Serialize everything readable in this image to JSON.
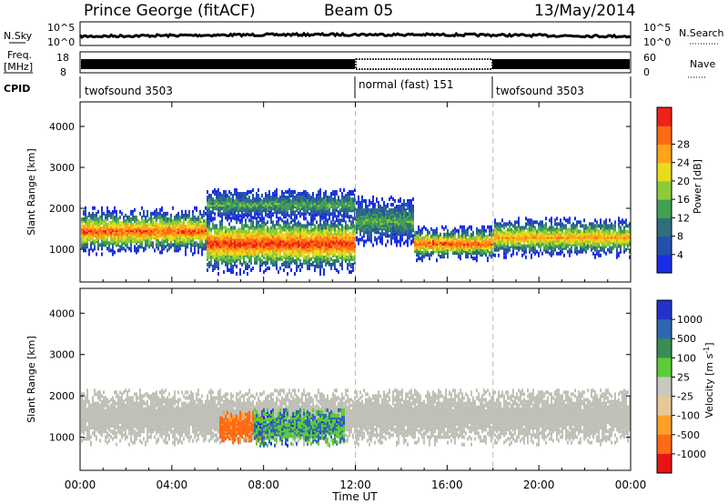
{
  "header": {
    "station": "Prince George (fitACF)",
    "beam": "Beam 05",
    "date": "13/May/2014"
  },
  "summary": {
    "nsky_label": "N.Sky",
    "nsearch_label": "N.Search",
    "freq_label_line1": "Freq.",
    "freq_label_line2": "[MHz]",
    "nave_label": "Nave",
    "cpid_label": "CPID",
    "nsky_ticks": [
      "10^5",
      "10^0"
    ],
    "nsearch_ticks": [
      "10^5",
      "10^0"
    ],
    "freq_ticks": [
      "18",
      "8"
    ],
    "nave_ticks": [
      "60",
      "0"
    ]
  },
  "cpid_segments": [
    {
      "label": "twofsound 3503",
      "start_hour": 0,
      "end_hour": 12
    },
    {
      "label": "normal (fast) 151",
      "start_hour": 12,
      "end_hour": 18
    },
    {
      "label": "twofsound 3503",
      "start_hour": 18,
      "end_hour": 24
    }
  ],
  "x_axis": {
    "label": "Time UT",
    "ticks": [
      "00:00",
      "04:00",
      "08:00",
      "12:00",
      "16:00",
      "20:00",
      "00:00"
    ]
  },
  "chart_data": [
    {
      "type": "heatmap",
      "ylabel": "Slant Range [km]",
      "yticks": [
        "1000",
        "2000",
        "3000",
        "4000"
      ],
      "ylim": [
        200,
        4600
      ],
      "xlim_hours": [
        0,
        24
      ],
      "colorbar": {
        "label": "Power [dB]",
        "ticks": [
          "4",
          "8",
          "12",
          "16",
          "20",
          "24",
          "28"
        ],
        "colors": [
          "#1a2ee8",
          "#254fae",
          "#2f6f7c",
          "#42a052",
          "#8dcb3a",
          "#e8dc1c",
          "#ffa51a",
          "#ff6a12",
          "#f0201a"
        ]
      },
      "echo_regions": [
        {
          "from_hour": 0,
          "to_hour": 5.5,
          "center_km": 1450,
          "half_width_km": 380,
          "peak_db": 28
        },
        {
          "from_hour": 5.5,
          "to_hour": 12,
          "center_km": 1150,
          "half_width_km": 500,
          "peak_db": 30
        },
        {
          "from_hour": 5.5,
          "to_hour": 12,
          "center_km": 2100,
          "half_width_km": 250,
          "peak_db": 14
        },
        {
          "from_hour": 12,
          "to_hour": 14.5,
          "center_km": 1700,
          "half_width_km": 400,
          "peak_db": 14
        },
        {
          "from_hour": 14.5,
          "to_hour": 18,
          "center_km": 1150,
          "half_width_km": 280,
          "peak_db": 28
        },
        {
          "from_hour": 18,
          "to_hour": 24,
          "center_km": 1300,
          "half_width_km": 330,
          "peak_db": 24
        }
      ]
    },
    {
      "type": "heatmap",
      "ylabel": "Slant Range [km]",
      "yticks": [
        "1000",
        "2000",
        "3000",
        "4000"
      ],
      "ylim": [
        200,
        4600
      ],
      "xlim_hours": [
        0,
        24
      ],
      "colorbar": {
        "label": "Velocity [m s^-1]",
        "ticks": [
          "1000",
          "500",
          "100",
          "25",
          "-25",
          "-100",
          "-500",
          "-1000"
        ],
        "colors": [
          "#2233cc",
          "#2f66b4",
          "#3a8e52",
          "#5ccc36",
          "#c8c8c0",
          "#e8c898",
          "#ffa028",
          "#ff6a14",
          "#e81414"
        ]
      },
      "ground_scatter_color": "#c0c0b8",
      "echo_regions": [
        {
          "from_hour": 0,
          "to_hour": 24,
          "center_km": 1500,
          "half_width_km": 450,
          "kind": "ground_scatter"
        },
        {
          "from_hour": 6,
          "to_hour": 8,
          "center_km": 1250,
          "half_width_km": 250,
          "velocity": -700
        },
        {
          "from_hour": 7.5,
          "to_hour": 11.5,
          "center_km": 1250,
          "half_width_km": 300,
          "velocity": 300
        }
      ]
    }
  ]
}
